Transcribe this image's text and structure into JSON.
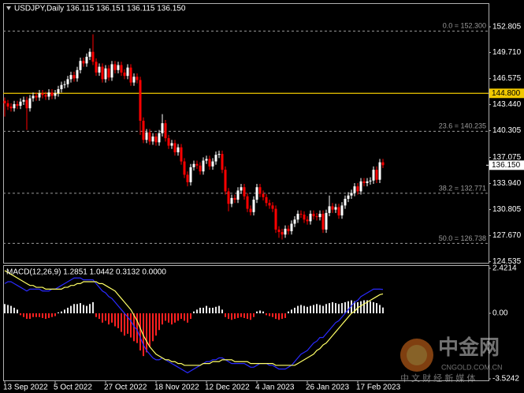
{
  "chart_data": [
    {
      "type": "candlestick",
      "title": "USDJPY,Daily  136.115 136.151 136.115 136.150",
      "categories": [
        "13 Sep 2022",
        null,
        null,
        null,
        null,
        null,
        null,
        null,
        null,
        null,
        null,
        null,
        null,
        null,
        null,
        null,
        "5 Oct 2022",
        null,
        null,
        null,
        null,
        null,
        null,
        null,
        null,
        null,
        null,
        null,
        null,
        null,
        null,
        null,
        "27 Oct 2022",
        null,
        null,
        null,
        null,
        null,
        null,
        null,
        null,
        null,
        null,
        null,
        null,
        null,
        null,
        null,
        "18 Nov 2022",
        null,
        null,
        null,
        null,
        null,
        null,
        null,
        null,
        null,
        null,
        null,
        null,
        null,
        null,
        null,
        "12 Dec 2022",
        null,
        null,
        null,
        null,
        null,
        null,
        null,
        null,
        null,
        null,
        null,
        null,
        null,
        null,
        null,
        "4 Jan 2023",
        null,
        null,
        null,
        null,
        null,
        null,
        null,
        null,
        null,
        null,
        null,
        null,
        null,
        null,
        null,
        "26 Jan 2023",
        null,
        null,
        null,
        null,
        null,
        null,
        null,
        null,
        null,
        null,
        null,
        null,
        null,
        null,
        null,
        "17 Feb 2023",
        null,
        null,
        null,
        null,
        null,
        null,
        null,
        null
      ],
      "open": [
        143.9,
        143.6,
        143.2,
        143.0,
        143.5,
        143.3,
        143.8,
        144.0,
        143.0,
        144.2,
        144.5,
        144.3,
        144.8,
        144.6,
        144.4,
        144.9,
        144.5,
        144.8,
        145.3,
        145.8,
        145.9,
        146.5,
        147.0,
        146.6,
        147.6,
        148.7,
        148.4,
        149.2,
        149.8,
        148.6,
        147.3,
        148.0,
        146.5,
        147.8,
        146.7,
        148.3,
        147.6,
        148.2,
        147.3,
        146.9,
        147.9,
        146.1,
        146.8,
        146.4,
        141.5,
        139.2,
        140.1,
        139.0,
        139.6,
        138.9,
        140.0,
        141.2,
        139.4,
        138.5,
        138.8,
        137.7,
        138.3,
        136.6,
        135.0,
        134.1,
        135.9,
        136.3,
        136.1,
        135.4,
        136.7,
        136.9,
        136.0,
        136.6,
        137.4,
        137.5,
        135.6,
        133.0,
        131.5,
        132.2,
        132.0,
        133.1,
        133.5,
        132.4,
        130.9,
        130.5,
        132.0,
        133.5,
        132.7,
        132.3,
        131.6,
        131.3,
        130.9,
        128.4,
        128.1,
        127.8,
        128.5,
        128.2,
        129.1,
        129.6,
        130.3,
        130.2,
        129.6,
        129.4,
        130.3,
        130.0,
        129.9,
        130.3,
        128.4,
        130.4,
        131.2,
        130.8,
        131.1,
        130.1,
        131.3,
        132.1,
        132.5,
        132.8,
        133.6,
        133.0,
        134.2,
        134.0,
        134.2,
        134.3,
        135.6,
        134.4,
        136.5
      ],
      "high": [
        144.3,
        144.0,
        143.6,
        143.9,
        143.9,
        144.2,
        144.4,
        144.4,
        144.6,
        144.9,
        144.9,
        145.2,
        145.2,
        145.0,
        145.3,
        145.3,
        145.2,
        145.7,
        146.2,
        146.3,
        146.9,
        147.4,
        147.4,
        148.0,
        149.1,
        149.1,
        149.6,
        150.2,
        151.9,
        149.0,
        148.4,
        148.4,
        148.2,
        148.2,
        148.7,
        148.7,
        148.6,
        148.6,
        147.7,
        148.3,
        148.3,
        147.2,
        147.2,
        146.8,
        141.9,
        140.5,
        140.5,
        140.0,
        140.0,
        140.4,
        142.3,
        141.6,
        139.8,
        139.2,
        139.2,
        138.7,
        138.7,
        137.0,
        135.4,
        136.3,
        136.7,
        136.7,
        136.5,
        137.1,
        137.3,
        137.3,
        137.0,
        137.8,
        137.9,
        137.9,
        136.0,
        133.4,
        132.6,
        132.6,
        133.5,
        133.9,
        133.9,
        132.8,
        131.3,
        132.4,
        133.9,
        133.9,
        133.1,
        132.7,
        132.0,
        131.7,
        131.3,
        128.8,
        128.5,
        128.9,
        128.9,
        129.5,
        130.0,
        130.7,
        130.7,
        130.6,
        130.0,
        130.7,
        130.7,
        130.4,
        130.7,
        130.7,
        130.8,
        132.5,
        131.6,
        131.5,
        131.5,
        131.7,
        132.5,
        132.9,
        133.2,
        134.0,
        134.0,
        134.6,
        134.6,
        134.6,
        134.7,
        136.0,
        136.0,
        136.9,
        136.9
      ],
      "low": [
        142.0,
        142.8,
        142.6,
        142.6,
        142.9,
        142.9,
        143.4,
        140.4,
        142.6,
        143.8,
        143.9,
        143.9,
        144.2,
        144.0,
        144.0,
        144.1,
        144.1,
        144.4,
        144.9,
        145.4,
        145.5,
        146.1,
        146.2,
        146.2,
        147.2,
        148.0,
        148.0,
        148.8,
        148.2,
        146.9,
        146.9,
        146.1,
        146.1,
        146.3,
        146.3,
        147.2,
        147.2,
        146.9,
        146.5,
        146.5,
        145.7,
        145.7,
        146.0,
        139.8,
        138.8,
        138.8,
        138.6,
        138.6,
        138.5,
        138.5,
        139.6,
        139.0,
        138.1,
        138.1,
        137.3,
        137.3,
        136.2,
        134.6,
        133.6,
        133.7,
        135.5,
        135.7,
        135.0,
        135.0,
        136.3,
        135.6,
        135.6,
        136.2,
        137.0,
        135.2,
        132.6,
        130.6,
        131.1,
        131.6,
        131.6,
        132.7,
        132.0,
        130.5,
        130.1,
        130.1,
        131.6,
        132.3,
        131.9,
        131.2,
        130.9,
        130.5,
        128.0,
        127.4,
        127.2,
        127.4,
        127.8,
        127.8,
        128.7,
        129.2,
        129.8,
        129.2,
        129.0,
        129.0,
        129.6,
        129.5,
        129.5,
        128.0,
        128.0,
        130.0,
        130.4,
        130.4,
        129.7,
        129.7,
        130.9,
        131.7,
        132.1,
        132.4,
        132.6,
        132.6,
        133.6,
        133.6,
        133.8,
        133.9,
        134.0,
        134.0,
        135.8
      ],
      "close": [
        143.6,
        143.2,
        143.0,
        143.5,
        143.3,
        143.8,
        144.0,
        143.0,
        144.2,
        144.5,
        144.3,
        144.8,
        144.6,
        144.4,
        144.9,
        144.5,
        144.8,
        145.3,
        145.8,
        145.9,
        146.5,
        147.0,
        146.6,
        147.6,
        148.7,
        148.4,
        149.2,
        149.8,
        148.6,
        147.3,
        148.0,
        146.5,
        147.8,
        146.7,
        148.3,
        147.6,
        148.2,
        147.3,
        146.9,
        147.9,
        146.1,
        146.8,
        146.4,
        141.5,
        139.2,
        140.1,
        139.0,
        139.6,
        138.9,
        140.0,
        141.2,
        139.4,
        138.5,
        138.8,
        137.7,
        138.3,
        136.6,
        135.0,
        134.1,
        135.9,
        136.3,
        136.1,
        135.4,
        136.7,
        136.9,
        136.0,
        136.6,
        137.4,
        137.5,
        135.6,
        133.0,
        131.5,
        132.2,
        132.0,
        133.1,
        133.5,
        132.4,
        130.9,
        130.5,
        132.0,
        133.5,
        132.7,
        132.3,
        131.6,
        131.3,
        130.9,
        128.4,
        128.1,
        127.8,
        128.5,
        128.2,
        129.1,
        129.6,
        130.3,
        130.2,
        129.6,
        129.4,
        130.3,
        130.0,
        129.9,
        130.3,
        128.4,
        130.4,
        131.2,
        130.8,
        131.1,
        130.1,
        131.3,
        132.1,
        132.5,
        132.8,
        133.6,
        133.0,
        134.2,
        134.0,
        134.2,
        134.3,
        135.6,
        134.4,
        136.5,
        136.15
      ],
      "up_color": "#ffffff",
      "down_color": "#ff0000",
      "ylim": [
        124.4,
        155.655
      ],
      "yticks": [
        152.805,
        {
          "value": 149.71,
          "label": "149.710"
        },
        146.575,
        {
          "value": 143.44,
          "label": "143.440"
        },
        140.305,
        137.075,
        {
          "value": 133.94,
          "label": "133.940"
        },
        130.805,
        {
          "value": 127.67,
          "label": "127.670"
        },
        124.535
      ],
      "grid": false,
      "fib_levels": [
        {
          "value": 152.3,
          "label": "0.0 = 152.300"
        },
        {
          "value": 140.235,
          "label": "23.6 = 140.235"
        },
        {
          "value": 132.771,
          "label": "38.2 = 132.771"
        },
        {
          "value": 126.738,
          "label": "50.0 = 126.738"
        }
      ],
      "fib_color": "#9a9a9a",
      "hline": {
        "value": 144.8,
        "label": "144.800",
        "color": "#f0c800"
      },
      "last_price": {
        "value": 136.15,
        "label": "136.150"
      }
    },
    {
      "type": "macd",
      "title": "MACD(12,26,9) 1.2851 1.0442 0.3132 0.0000",
      "ylim": [
        -3.5242,
        2.4214
      ],
      "yticks": [
        2.4214,
        {
          "value": 0,
          "label": "0.00"
        },
        -3.5242
      ],
      "histogram": {
        "up_color": "#e8e8e8",
        "down_color": "#ff2020",
        "values": [
          0.5,
          0.45,
          0.4,
          0.3,
          0.2,
          -0.1,
          -0.2,
          -0.3,
          -0.3,
          -0.2,
          -0.2,
          -0.2,
          -0.25,
          -0.3,
          -0.25,
          -0.2,
          -0.15,
          0.05,
          0.1,
          0.2,
          0.3,
          0.4,
          0.5,
          0.5,
          0.55,
          0.45,
          0.4,
          0.5,
          0.6,
          -0.2,
          -0.3,
          -0.5,
          -0.4,
          -0.6,
          -0.5,
          -0.7,
          -0.8,
          -1.0,
          -1.2,
          -1.1,
          -1.3,
          -1.5,
          -1.6,
          -2.0,
          -2.3,
          -2.1,
          -1.8,
          -1.5,
          -1.2,
          -0.9,
          -0.6,
          -0.4,
          -0.5,
          -0.6,
          -0.5,
          -0.4,
          -0.3,
          -0.4,
          -0.5,
          -0.3,
          0.1,
          0.2,
          0.3,
          0.3,
          0.4,
          0.3,
          0.3,
          0.35,
          0.4,
          0.2,
          -0.2,
          -0.3,
          -0.35,
          -0.3,
          -0.25,
          -0.2,
          -0.25,
          -0.3,
          -0.35,
          -0.2,
          0.1,
          0.15,
          0.1,
          -0.1,
          -0.15,
          -0.2,
          -0.3,
          -0.35,
          -0.3,
          -0.25,
          0.1,
          0.2,
          0.3,
          0.4,
          0.45,
          0.4,
          0.35,
          0.4,
          0.45,
          0.5,
          0.45,
          0.4,
          0.5,
          0.55,
          0.6,
          0.55,
          0.5,
          0.55,
          0.6,
          0.65,
          0.7,
          0.65,
          0.6,
          0.65,
          0.7,
          0.7,
          0.65,
          0.6,
          0.55,
          0.45,
          0.3132
        ]
      },
      "series": [
        {
          "color": "#2a2aff",
          "values": [
            1.6,
            1.7,
            1.7,
            1.6,
            1.5,
            1.4,
            1.3,
            1.2,
            1.3,
            1.3,
            1.3,
            1.3,
            1.2,
            1.2,
            1.2,
            1.3,
            1.3,
            1.4,
            1.5,
            1.6,
            1.7,
            1.8,
            1.9,
            1.9,
            1.9,
            1.8,
            1.8,
            1.8,
            1.8,
            1.6,
            1.4,
            1.2,
            1.1,
            0.9,
            0.8,
            0.6,
            0.4,
            0.2,
            0.0,
            -0.2,
            -0.4,
            -0.7,
            -0.9,
            -1.3,
            -1.7,
            -2.0,
            -2.2,
            -2.4,
            -2.5,
            -2.5,
            -2.4,
            -2.5,
            -2.6,
            -2.7,
            -2.8,
            -2.9,
            -3.0,
            -3.1,
            -3.2,
            -3.1,
            -3.0,
            -2.9,
            -2.8,
            -2.7,
            -2.6,
            -2.6,
            -2.5,
            -2.5,
            -2.4,
            -2.4,
            -2.5,
            -2.6,
            -2.7,
            -2.7,
            -2.7,
            -2.7,
            -2.7,
            -2.8,
            -2.9,
            -2.9,
            -2.8,
            -2.7,
            -2.7,
            -2.7,
            -2.8,
            -2.8,
            -2.9,
            -3.0,
            -3.0,
            -3.0,
            -2.9,
            -2.8,
            -2.6,
            -2.4,
            -2.2,
            -2.1,
            -2.0,
            -1.8,
            -1.6,
            -1.5,
            -1.3,
            -1.3,
            -1.1,
            -0.9,
            -0.7,
            -0.5,
            -0.4,
            -0.2,
            0.0,
            0.2,
            0.4,
            0.6,
            0.7,
            0.9,
            1.0,
            1.1,
            1.2,
            1.3,
            1.3,
            1.3,
            1.2851
          ]
        },
        {
          "color": "#ffff66",
          "values": [
            2.3,
            2.2,
            2.1,
            2.0,
            1.9,
            1.8,
            1.7,
            1.6,
            1.5,
            1.5,
            1.4,
            1.4,
            1.4,
            1.3,
            1.3,
            1.3,
            1.3,
            1.3,
            1.3,
            1.4,
            1.4,
            1.5,
            1.5,
            1.6,
            1.6,
            1.7,
            1.7,
            1.7,
            1.7,
            1.7,
            1.6,
            1.6,
            1.5,
            1.4,
            1.3,
            1.2,
            1.0,
            0.8,
            0.6,
            0.4,
            0.2,
            -0.1,
            -0.4,
            -0.8,
            -1.2,
            -1.5,
            -1.8,
            -2.0,
            -2.2,
            -2.3,
            -2.4,
            -2.5,
            -2.5,
            -2.6,
            -2.6,
            -2.7,
            -2.7,
            -2.8,
            -2.8,
            -2.8,
            -2.8,
            -2.8,
            -2.8,
            -2.7,
            -2.7,
            -2.7,
            -2.6,
            -2.6,
            -2.6,
            -2.5,
            -2.5,
            -2.5,
            -2.5,
            -2.6,
            -2.6,
            -2.6,
            -2.6,
            -2.6,
            -2.7,
            -2.7,
            -2.7,
            -2.7,
            -2.7,
            -2.7,
            -2.7,
            -2.7,
            -2.8,
            -2.8,
            -2.8,
            -2.8,
            -2.8,
            -2.8,
            -2.8,
            -2.7,
            -2.6,
            -2.5,
            -2.4,
            -2.3,
            -2.2,
            -2.0,
            -1.9,
            -1.7,
            -1.6,
            -1.4,
            -1.2,
            -1.0,
            -0.8,
            -0.6,
            -0.4,
            -0.2,
            0.0,
            0.1,
            0.3,
            0.4,
            0.5,
            0.6,
            0.7,
            0.8,
            0.9,
            1.0,
            1.0442
          ]
        }
      ]
    }
  ],
  "watermark": {
    "logo": "中金网",
    "site": "CNGOLD.COM.CN",
    "slogan": "中 文 财 经 新 媒 体"
  }
}
